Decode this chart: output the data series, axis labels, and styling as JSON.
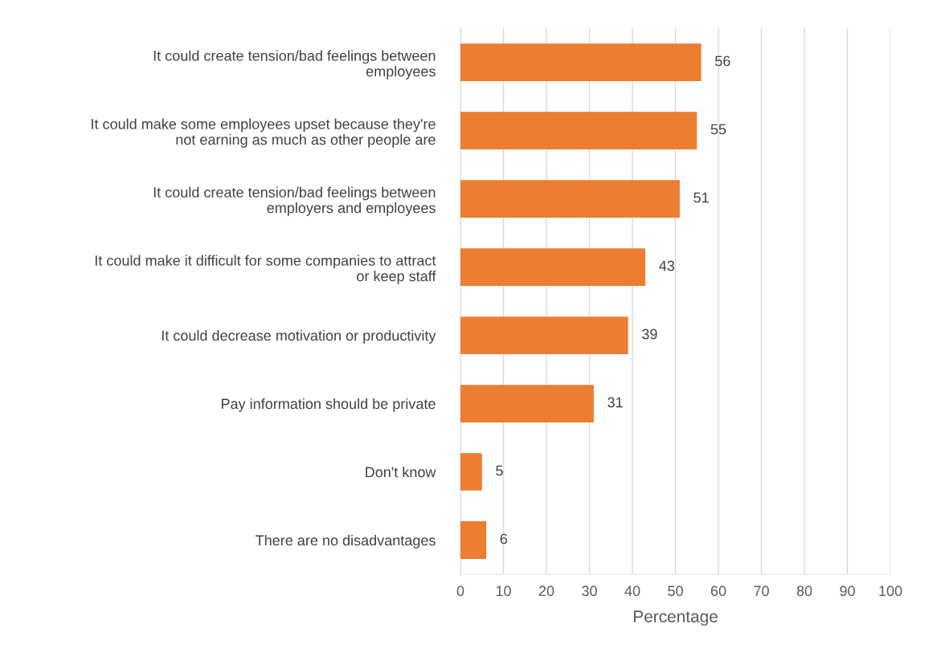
{
  "chart_data": {
    "type": "bar",
    "orientation": "horizontal",
    "xlabel": "Percentage",
    "categories": [
      "It could create tension/bad feelings between\nemployees",
      "It could make some employees upset because they're\nnot earning as much as other people are",
      "It could create tension/bad feelings between\nemployers and employees",
      "It could make it difficult for some companies to attract\nor keep staff",
      "It could decrease motivation or productivity",
      "Pay information should be private",
      "Don't know",
      "There are no disadvantages"
    ],
    "values": [
      56,
      55,
      51,
      43,
      39,
      31,
      5,
      6
    ],
    "color": "#ed7d31",
    "xlim": [
      0,
      100
    ],
    "xticks": [
      0,
      10,
      20,
      30,
      40,
      50,
      60,
      70,
      80,
      90,
      100
    ],
    "grid": "x",
    "data_labels": true,
    "legend": false
  }
}
